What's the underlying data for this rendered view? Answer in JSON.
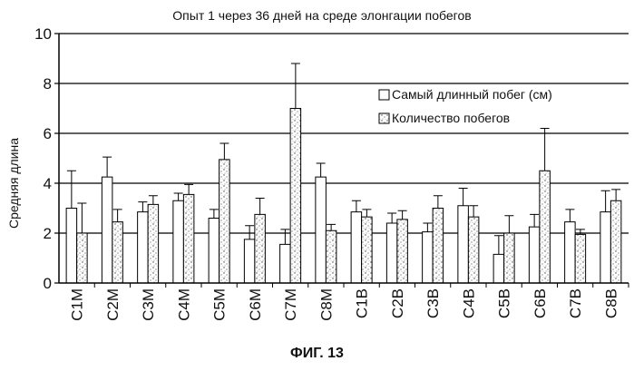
{
  "figure_caption": "ФИГ. 13",
  "chart_data": {
    "type": "bar",
    "title": "Опыт 1 через 36 дней на среде элонгации побегов",
    "xlabel": "",
    "ylabel": "Средняя длина",
    "ylim": [
      0,
      10
    ],
    "yticks": [
      "0",
      "2",
      "4",
      "6",
      "8",
      "10"
    ],
    "grid": "horizontal lines at 2, 4, 6, 8, 10",
    "legend_position": "top-right",
    "categories": [
      "C1M",
      "C2M",
      "C3M",
      "C4M",
      "C5M",
      "C6M",
      "C7M",
      "C8M",
      "C1B",
      "C2B",
      "C3B",
      "C4B",
      "C5B",
      "C6B",
      "C7B",
      "C8B"
    ],
    "series": [
      {
        "name": "Самый длинный побег (см)",
        "fill": "white",
        "values": [
          3.0,
          4.25,
          2.85,
          3.3,
          2.6,
          1.75,
          1.55,
          4.25,
          2.85,
          2.4,
          2.05,
          3.1,
          1.15,
          2.25,
          2.45,
          2.85
        ],
        "error": [
          1.5,
          0.8,
          0.4,
          0.3,
          0.35,
          0.55,
          0.6,
          0.55,
          0.45,
          0.4,
          0.35,
          0.7,
          0.75,
          0.5,
          0.5,
          0.85
        ]
      },
      {
        "name": "Количество побегов",
        "fill": "stippled",
        "values": [
          2.0,
          2.45,
          3.15,
          3.55,
          4.95,
          2.75,
          7.0,
          2.1,
          2.65,
          2.55,
          3.0,
          2.65,
          2.0,
          4.5,
          1.95,
          3.3
        ],
        "error": [
          1.2,
          0.5,
          0.35,
          0.4,
          0.65,
          0.65,
          1.8,
          0.25,
          0.3,
          0.35,
          0.5,
          0.45,
          0.7,
          1.7,
          0.2,
          0.45
        ]
      }
    ]
  }
}
